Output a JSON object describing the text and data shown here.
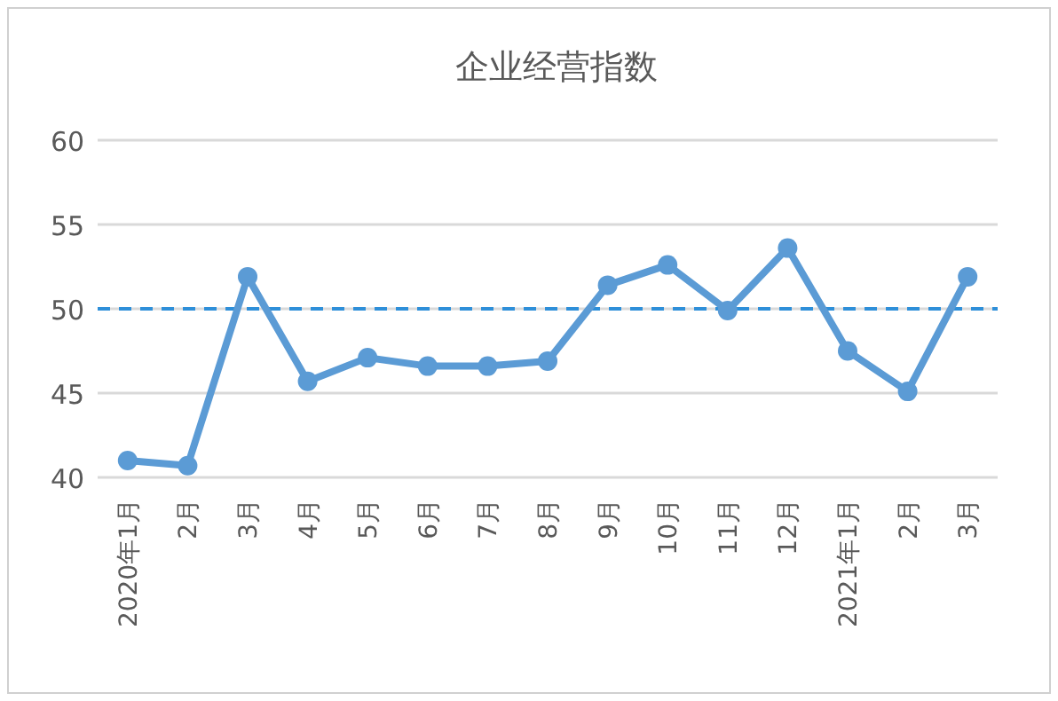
{
  "chart_data": {
    "type": "line",
    "title": "企业经营指数",
    "categories": [
      "2020年1月",
      "2月",
      "3月",
      "4月",
      "5月",
      "6月",
      "7月",
      "8月",
      "9月",
      "10月",
      "11月",
      "12月",
      "2021年1月",
      "2月",
      "3月"
    ],
    "series": [
      {
        "color": "#5b9bd5",
        "values": [
          41.0,
          40.7,
          51.9,
          45.7,
          47.1,
          46.6,
          46.6,
          46.9,
          51.4,
          52.6,
          49.9,
          53.6,
          47.5,
          45.1,
          51.9
        ]
      }
    ],
    "ylim": [
      40,
      60
    ],
    "yticks": [
      40,
      45,
      50,
      55,
      60
    ],
    "grid": "y",
    "marker": "circle",
    "line_style": "solid",
    "ref_lines": [
      {
        "axis": "y",
        "value": 50,
        "color": "#2e8fd9",
        "line_style": "dashed"
      }
    ]
  }
}
